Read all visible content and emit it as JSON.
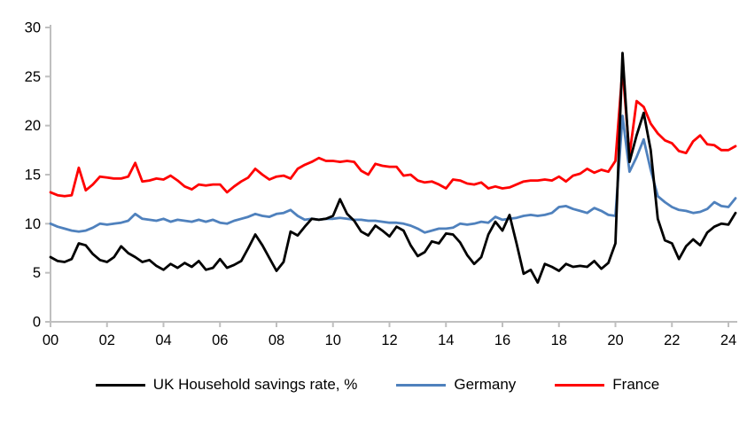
{
  "chart_data": {
    "type": "line",
    "title": "",
    "xlabel": "",
    "ylabel": "",
    "x_unit": "year (quarterly data)",
    "x_range": [
      2000.0,
      2024.25
    ],
    "ylim": [
      0,
      30
    ],
    "y_tick_values": [
      0,
      5,
      10,
      15,
      20,
      25,
      30
    ],
    "y_tick_labels": [
      "0",
      "5",
      "10",
      "15",
      "20",
      "25",
      "30"
    ],
    "x_tick_years": [
      2000,
      2002,
      2004,
      2006,
      2008,
      2010,
      2012,
      2014,
      2016,
      2018,
      2020,
      2022,
      2024
    ],
    "x_tick_labels": [
      "00",
      "02",
      "04",
      "06",
      "08",
      "10",
      "12",
      "14",
      "16",
      "18",
      "20",
      "22",
      "24"
    ],
    "grid": false,
    "legend_position": "bottom",
    "axis_color": "#BFBFBF",
    "text_color": "#000000",
    "series": [
      {
        "name": "UK Household savings rate, %",
        "color": "#000000",
        "start": "2000Q1",
        "frequency": "quarterly",
        "values": [
          6.6,
          6.2,
          6.1,
          6.4,
          8.0,
          7.8,
          6.9,
          6.3,
          6.1,
          6.6,
          7.7,
          7.0,
          6.6,
          6.1,
          6.3,
          5.7,
          5.3,
          5.9,
          5.5,
          6.0,
          5.6,
          6.2,
          5.3,
          5.5,
          6.4,
          5.5,
          5.8,
          6.2,
          7.5,
          8.9,
          7.8,
          6.5,
          5.2,
          6.1,
          9.2,
          8.8,
          9.7,
          10.5,
          10.4,
          10.5,
          10.8,
          12.5,
          11.0,
          10.3,
          9.2,
          8.8,
          9.8,
          9.3,
          8.7,
          9.7,
          9.3,
          7.8,
          6.7,
          7.1,
          8.2,
          8.0,
          9.0,
          8.9,
          8.1,
          6.8,
          5.9,
          6.6,
          8.9,
          10.2,
          9.3,
          10.9,
          8.0,
          4.9,
          5.3,
          4.0,
          5.9,
          5.6,
          5.2,
          5.9,
          5.6,
          5.7,
          5.6,
          6.2,
          5.4,
          6.0,
          8.0,
          27.4,
          16.3,
          19.0,
          21.3,
          17.5,
          10.5,
          8.3,
          8.0,
          6.4,
          7.7,
          8.4,
          7.8,
          9.1,
          9.7,
          10.0,
          9.9,
          11.1
        ]
      },
      {
        "name": "Germany",
        "color": "#4F81BD",
        "start": "2000Q1",
        "frequency": "quarterly",
        "values": [
          10.0,
          9.7,
          9.5,
          9.3,
          9.2,
          9.3,
          9.6,
          10.0,
          9.9,
          10.0,
          10.1,
          10.3,
          11.0,
          10.5,
          10.4,
          10.3,
          10.5,
          10.2,
          10.4,
          10.3,
          10.2,
          10.4,
          10.2,
          10.4,
          10.1,
          10.0,
          10.3,
          10.5,
          10.7,
          11.0,
          10.8,
          10.7,
          11.0,
          11.1,
          11.4,
          10.8,
          10.4,
          10.5,
          10.4,
          10.5,
          10.5,
          10.6,
          10.5,
          10.4,
          10.4,
          10.3,
          10.3,
          10.2,
          10.1,
          10.1,
          10.0,
          9.8,
          9.5,
          9.1,
          9.3,
          9.5,
          9.5,
          9.6,
          10.0,
          9.9,
          10.0,
          10.2,
          10.1,
          10.7,
          10.4,
          10.5,
          10.6,
          10.8,
          10.9,
          10.8,
          10.9,
          11.1,
          11.7,
          11.8,
          11.5,
          11.3,
          11.1,
          11.6,
          11.3,
          10.9,
          10.8,
          21.0,
          15.3,
          16.8,
          18.6,
          15.5,
          12.8,
          12.2,
          11.7,
          11.4,
          11.3,
          11.1,
          11.2,
          11.5,
          12.2,
          11.8,
          11.7,
          12.6
        ]
      },
      {
        "name": "France",
        "color": "#FF0000",
        "start": "2000Q1",
        "frequency": "quarterly",
        "values": [
          13.2,
          12.9,
          12.8,
          12.9,
          15.7,
          13.4,
          14.0,
          14.8,
          14.7,
          14.6,
          14.6,
          14.8,
          16.2,
          14.3,
          14.4,
          14.6,
          14.5,
          14.9,
          14.4,
          13.8,
          13.5,
          14.0,
          13.9,
          14.0,
          14.0,
          13.2,
          13.8,
          14.3,
          14.7,
          15.6,
          15.0,
          14.5,
          14.8,
          14.9,
          14.6,
          15.6,
          16.0,
          16.3,
          16.7,
          16.4,
          16.4,
          16.3,
          16.4,
          16.3,
          15.4,
          15.0,
          16.1,
          15.9,
          15.8,
          15.8,
          14.9,
          15.0,
          14.4,
          14.2,
          14.3,
          14.0,
          13.6,
          14.5,
          14.4,
          14.1,
          14.0,
          14.2,
          13.6,
          13.8,
          13.6,
          13.7,
          14.0,
          14.3,
          14.4,
          14.4,
          14.5,
          14.4,
          14.8,
          14.3,
          14.9,
          15.1,
          15.6,
          15.2,
          15.5,
          15.3,
          16.4,
          25.8,
          17.0,
          22.5,
          21.9,
          20.2,
          19.2,
          18.5,
          18.2,
          17.4,
          17.2,
          18.4,
          19.0,
          18.1,
          18.0,
          17.5,
          17.5,
          17.9
        ]
      }
    ]
  }
}
